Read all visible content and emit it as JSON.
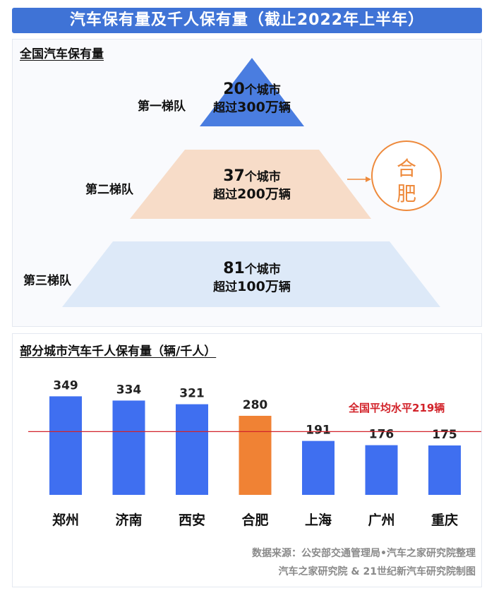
{
  "title": "汽车保有量及千人保有量（截止2022年上半年）",
  "pyramid": {
    "section_title": "全国汽车保有量",
    "tiers": [
      {
        "label": "第一梯队",
        "count": "20",
        "unit": "个城市",
        "prefix": "超过",
        "amount": "300万",
        "suffix": "辆",
        "color": "#4a7de0"
      },
      {
        "label": "第二梯队",
        "count": "37",
        "unit": "个城市",
        "prefix": "超过",
        "amount": "200万",
        "suffix": "辆",
        "color": "#f7dcc8"
      },
      {
        "label": "第三梯队",
        "count": "81",
        "unit": "个城市",
        "prefix": "超过",
        "amount": "100万",
        "suffix": "辆",
        "color": "#dde9f8"
      }
    ],
    "highlight_city": {
      "line1": "合",
      "line2": "肥",
      "color": "#ee8a3c"
    }
  },
  "chart_data": {
    "type": "bar",
    "title": "部分城市汽车千人保有量（辆/千人）",
    "categories": [
      "郑州",
      "济南",
      "西安",
      "合肥",
      "上海",
      "广州",
      "重庆"
    ],
    "values": [
      349,
      334,
      321,
      280,
      191,
      176,
      175
    ],
    "bar_color": "#3f6ff0",
    "highlight_category": "合肥",
    "highlight_color": "#f08234",
    "reference_line": {
      "value": 219,
      "label": "全国平均水平219辆",
      "color": "#d2232a"
    },
    "ylim": [
      0,
      400
    ],
    "grid": false,
    "data_labels": true
  },
  "source": {
    "line1": "数据来源：公安部交通管理局•汽车之家研究院整理",
    "line2": "汽车之家研究院 & 21世纪新汽车研究院制图"
  }
}
